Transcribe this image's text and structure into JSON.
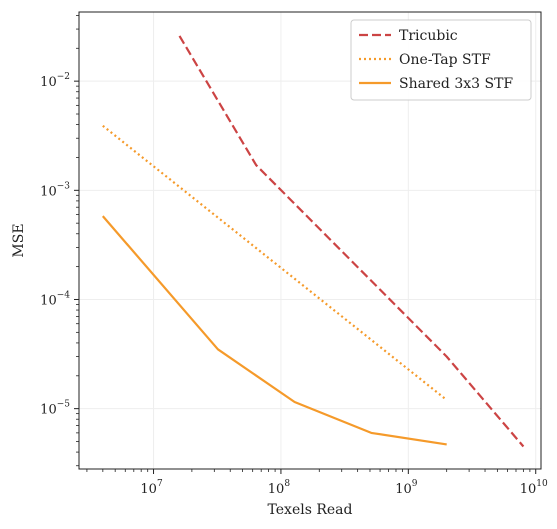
{
  "chart_data": {
    "type": "line",
    "title": "",
    "xlabel": "Texels Read",
    "ylabel": "MSE",
    "xscale": "log",
    "yscale": "log",
    "xlim": [
      2600000.0,
      11000000000.0
    ],
    "ylim": [
      2.8e-06,
      0.043
    ],
    "xticks": [
      {
        "value": 10000000.0,
        "base": "10",
        "exp": "7"
      },
      {
        "value": 100000000.0,
        "base": "10",
        "exp": "8"
      },
      {
        "value": 1000000000.0,
        "base": "10",
        "exp": "9"
      },
      {
        "value": 10000000000.0,
        "base": "10",
        "exp": "10"
      }
    ],
    "yticks": [
      {
        "value": 0.01,
        "base": "10",
        "exp": "−2"
      },
      {
        "value": 0.001,
        "base": "10",
        "exp": "−3"
      },
      {
        "value": 0.0001,
        "base": "10",
        "exp": "−4"
      },
      {
        "value": 1e-05,
        "base": "10",
        "exp": "−5"
      }
    ],
    "grid": true,
    "legend_position": "top-right",
    "series": [
      {
        "name": "Tricubic",
        "color": "#cc4444",
        "style": "dashed",
        "x": [
          16000000.0,
          64000000.0,
          2000000000.0,
          8000000000.0
        ],
        "y": [
          0.026,
          0.0017,
          3e-05,
          4.5e-06
        ]
      },
      {
        "name": "One-Tap STF",
        "color": "#f59a2a",
        "style": "dotted",
        "x": [
          4000000.0,
          2000000000.0
        ],
        "y": [
          0.0039,
          1.2e-05
        ]
      },
      {
        "name": "Shared 3x3 STF",
        "color": "#f59a2a",
        "style": "solid",
        "x": [
          4000000.0,
          32000000.0,
          128000000.0,
          512000000.0,
          2000000000.0
        ],
        "y": [
          0.00058,
          3.5e-05,
          1.15e-05,
          6e-06,
          4.7e-06
        ]
      }
    ]
  }
}
